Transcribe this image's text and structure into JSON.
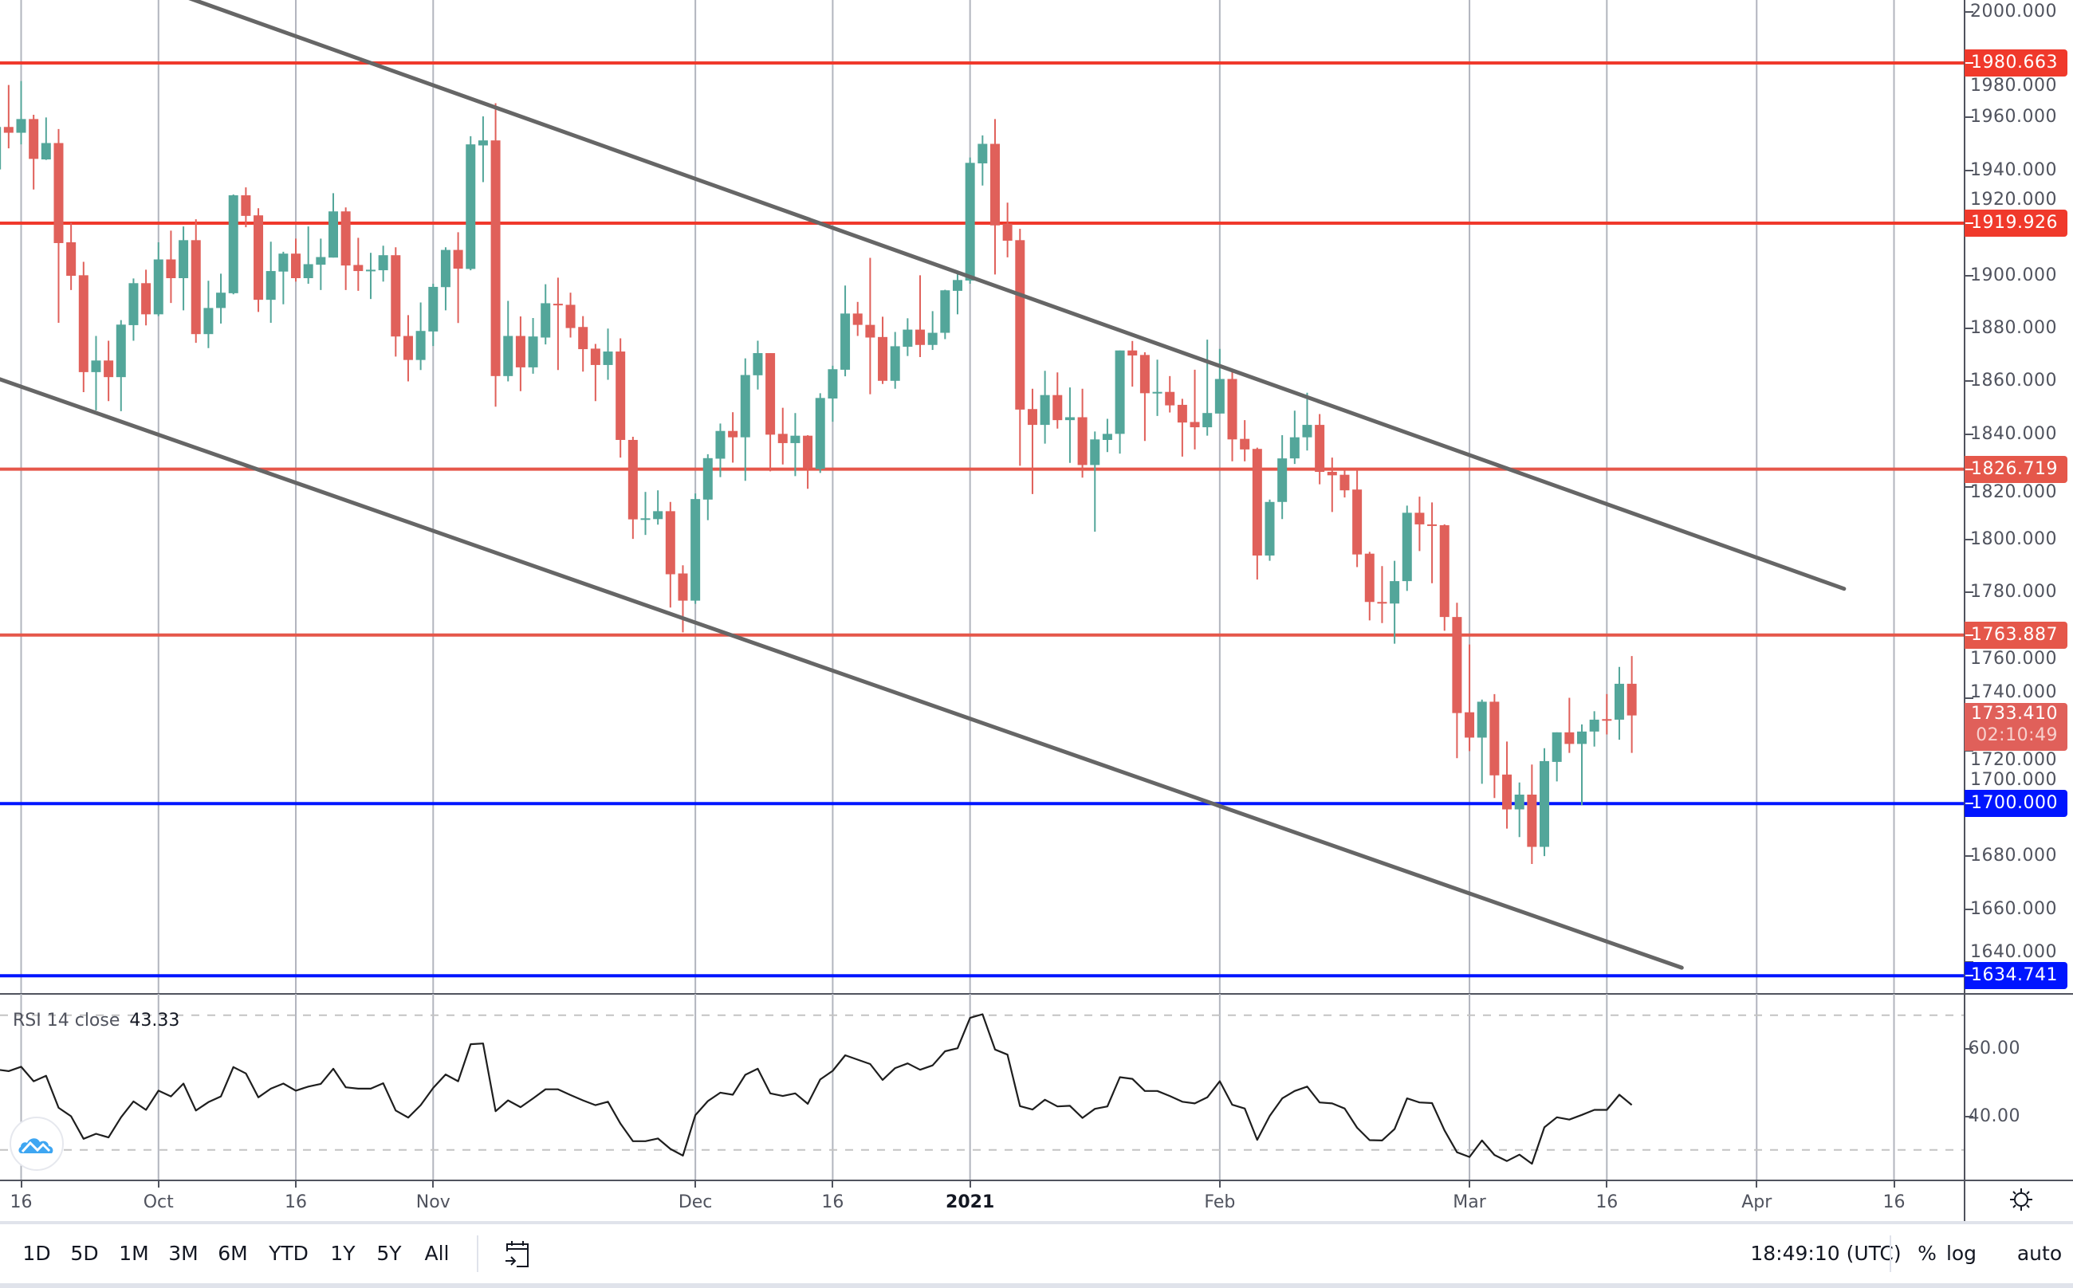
{
  "chart_data": {
    "type": "candlestick",
    "colors": {
      "up": "#53a69a",
      "down": "#e0605a",
      "trendline": "#666666",
      "rsi_line": "#1e1e1e"
    },
    "price_axis": {
      "ticks": [
        "2000.000",
        "1980.000",
        "1960.000",
        "1940.000",
        "1920.000",
        "1900.000",
        "1880.000",
        "1860.000",
        "1840.000",
        "1820.000",
        "1800.000",
        "1780.000",
        "1760.000",
        "1740.000",
        "1720.000",
        "1700.000",
        "1680.000",
        "1660.000",
        "1640.000"
      ],
      "ylim": [
        1637.5,
        2004.5
      ]
    },
    "time_axis": {
      "labels": [
        {
          "text": "16",
          "date": "2020-09-16"
        },
        {
          "text": "Oct",
          "date": "2020-10-01"
        },
        {
          "text": "16",
          "date": "2020-10-16"
        },
        {
          "text": "Nov",
          "date": "2020-11-02"
        },
        {
          "text": "Dec",
          "date": "2020-12-01"
        },
        {
          "text": "16",
          "date": "2020-12-16"
        },
        {
          "text": "2021",
          "date": "2021-01-04",
          "bold": true
        },
        {
          "text": "Feb",
          "date": "2021-02-01"
        },
        {
          "text": "Mar",
          "date": "2021-03-01"
        },
        {
          "text": "16",
          "date": "2021-03-16"
        },
        {
          "text": "Apr",
          "date": "2021-04-01"
        },
        {
          "text": "16",
          "date": "2021-04-16"
        }
      ],
      "grid": true
    },
    "horizontal_lines": [
      {
        "price": 1980.663,
        "label": "1980.663",
        "color": "#f0392b"
      },
      {
        "price": 1919.926,
        "label": "1919.926",
        "color": "#f0392b"
      },
      {
        "price": 1826.719,
        "label": "1826.719",
        "color": "#e5574a"
      },
      {
        "price": 1763.887,
        "label": "1763.887",
        "color": "#e5574a"
      },
      {
        "price": 1700.0,
        "label": "1700.000",
        "color": "#0015ff"
      },
      {
        "price": 1634.741,
        "label": "1634.741",
        "color": "#0015ff"
      }
    ],
    "trendlines": [
      {
        "from": [
          "2020-09-14",
          2031.3
        ],
        "to": [
          "2021-04-12",
          1781.4
        ]
      },
      {
        "from": [
          "2020-09-14",
          1861.3
        ],
        "to": [
          "2021-03-24",
          1637.8
        ]
      }
    ],
    "current_price": {
      "label": "1733.410",
      "price": 1733.41,
      "countdown": "02:10:49"
    },
    "ohlc_columns": [
      "date",
      "open",
      "high",
      "low",
      "close"
    ],
    "candles": [
      [
        "2020-09-14",
        1940.3,
        1966,
        1937,
        1956.4
      ],
      [
        "2020-09-15",
        1956.4,
        1972.3,
        1948.3,
        1954.2
      ],
      [
        "2020-09-16",
        1954.2,
        1973.8,
        1949.8,
        1959.4
      ],
      [
        "2020-09-17",
        1959.4,
        1961,
        1932.7,
        1944.3
      ],
      [
        "2020-09-18",
        1944.1,
        1960,
        1943.9,
        1950.3
      ],
      [
        "2020-09-21",
        1950.3,
        1955.6,
        1882.2,
        1912.4
      ],
      [
        "2020-09-22",
        1912.7,
        1920.1,
        1894.6,
        1900
      ],
      [
        "2020-09-23",
        1900.2,
        1905.3,
        1855.9,
        1863.5
      ],
      [
        "2020-09-24",
        1863.5,
        1877.2,
        1849,
        1867.9
      ],
      [
        "2020-09-25",
        1867.9,
        1875.4,
        1852.5,
        1861.6
      ],
      [
        "2020-09-28",
        1861.6,
        1883.2,
        1848.7,
        1881.5
      ],
      [
        "2020-09-29",
        1881.3,
        1899,
        1875.4,
        1897.2
      ],
      [
        "2020-09-30",
        1897.2,
        1902.3,
        1881.2,
        1885.4
      ],
      [
        "2020-10-01",
        1885.4,
        1912.7,
        1884.7,
        1906.2
      ],
      [
        "2020-10-02",
        1906.2,
        1917.1,
        1889.7,
        1899.1
      ],
      [
        "2020-10-05",
        1899.1,
        1918.7,
        1886.9,
        1913.5
      ],
      [
        "2020-10-06",
        1913.5,
        1921.4,
        1874.6,
        1877.9
      ],
      [
        "2020-10-07",
        1877.9,
        1898.1,
        1872.6,
        1887.8
      ],
      [
        "2020-10-08",
        1887.8,
        1900.8,
        1881.9,
        1893.6
      ],
      [
        "2020-10-09",
        1893.4,
        1930.8,
        1893,
        1930.5
      ],
      [
        "2020-10-12",
        1930.5,
        1933.5,
        1918.4,
        1922.7
      ],
      [
        "2020-10-13",
        1922.9,
        1925.6,
        1886.3,
        1890.9
      ],
      [
        "2020-10-14",
        1890.9,
        1912.9,
        1882.2,
        1901.8
      ],
      [
        "2020-10-15",
        1901.6,
        1909.1,
        1889.2,
        1908.4
      ],
      [
        "2020-10-16",
        1908.4,
        1914.1,
        1897.8,
        1899.1
      ],
      [
        "2020-10-19",
        1899.1,
        1918.7,
        1897,
        1904.4
      ],
      [
        "2020-10-20",
        1904.2,
        1914.1,
        1894.6,
        1907.1
      ],
      [
        "2020-10-21",
        1906.9,
        1931.3,
        1906.9,
        1924.4
      ],
      [
        "2020-10-22",
        1924.4,
        1925.9,
        1894.6,
        1903.9
      ],
      [
        "2020-10-23",
        1904.1,
        1914.4,
        1894.3,
        1901.8
      ],
      [
        "2020-10-26",
        1901.8,
        1908.7,
        1891.2,
        1902.3
      ],
      [
        "2020-10-27",
        1902.1,
        1911.4,
        1897.8,
        1907.8
      ],
      [
        "2020-10-28",
        1907.8,
        1910.8,
        1869.4,
        1877
      ],
      [
        "2020-10-29",
        1877.2,
        1885.1,
        1860,
        1868.1
      ],
      [
        "2020-10-30",
        1868.1,
        1889.9,
        1864.3,
        1879.1
      ],
      [
        "2020-11-02",
        1878.9,
        1897,
        1873.4,
        1895.8
      ],
      [
        "2020-11-03",
        1895.7,
        1910.8,
        1886.9,
        1909.8
      ],
      [
        "2020-11-04",
        1909.8,
        1916.5,
        1882.1,
        1902.7
      ],
      [
        "2020-11-05",
        1902.6,
        1952.9,
        1902.1,
        1949.8
      ],
      [
        "2020-11-06",
        1949.4,
        1960.4,
        1935.5,
        1951.3
      ],
      [
        "2020-11-09",
        1951.3,
        1965.4,
        1850.4,
        1862
      ],
      [
        "2020-11-10",
        1862,
        1890.5,
        1860,
        1877.2
      ],
      [
        "2020-11-11",
        1877.2,
        1884.6,
        1856.3,
        1865.3
      ],
      [
        "2020-11-12",
        1865.3,
        1884,
        1862.9,
        1877
      ],
      [
        "2020-11-13",
        1876.6,
        1896.8,
        1874,
        1889.6
      ],
      [
        "2020-11-16",
        1889.4,
        1899.3,
        1864.3,
        1889
      ],
      [
        "2020-11-17",
        1889,
        1893.6,
        1876.6,
        1880.2
      ],
      [
        "2020-11-18",
        1880.6,
        1884.7,
        1863.7,
        1872.2
      ],
      [
        "2020-11-19",
        1872.4,
        1874.2,
        1852.5,
        1866.2
      ],
      [
        "2020-11-20",
        1866.2,
        1880,
        1860.6,
        1871.3
      ],
      [
        "2020-11-23",
        1871.3,
        1876.3,
        1831.1,
        1837.8
      ],
      [
        "2020-11-24",
        1837.8,
        1839,
        1800.3,
        1807.7
      ],
      [
        "2020-11-25",
        1807.7,
        1818.1,
        1801.8,
        1808.1
      ],
      [
        "2020-11-26",
        1807.8,
        1818.7,
        1805.7,
        1810.8
      ],
      [
        "2020-11-27",
        1810.8,
        1814.3,
        1774.3,
        1786.9
      ],
      [
        "2020-11-30",
        1787.2,
        1790.3,
        1764.9,
        1776.9
      ],
      [
        "2020-12-01",
        1776.9,
        1817.5,
        1775.7,
        1815.4
      ],
      [
        "2020-12-02",
        1815.2,
        1832.4,
        1807.4,
        1830.9
      ],
      [
        "2020-12-03",
        1830.7,
        1844,
        1823.7,
        1841.2
      ],
      [
        "2020-12-04",
        1841.2,
        1848.3,
        1829.2,
        1838.8
      ],
      [
        "2020-12-07",
        1838.8,
        1868.7,
        1822.3,
        1862.4
      ],
      [
        "2020-12-08",
        1862.3,
        1875.4,
        1856.9,
        1870.7
      ],
      [
        "2020-12-09",
        1870.7,
        1870.7,
        1825.9,
        1839.8
      ],
      [
        "2020-12-10",
        1840.1,
        1850,
        1828.5,
        1836.6
      ],
      [
        "2020-12-11",
        1836.6,
        1848,
        1824.1,
        1839.4
      ],
      [
        "2020-12-14",
        1839.4,
        1839.6,
        1819.3,
        1827.1
      ],
      [
        "2020-12-15",
        1826.8,
        1855.5,
        1825.3,
        1853.7
      ],
      [
        "2020-12-16",
        1853.5,
        1865.9,
        1844.7,
        1864.6
      ],
      [
        "2020-12-17",
        1864.4,
        1896.3,
        1861.9,
        1885.7
      ],
      [
        "2020-12-18",
        1885.7,
        1890.1,
        1877.2,
        1881.4
      ],
      [
        "2020-12-21",
        1881.4,
        1906.8,
        1855.1,
        1876.6
      ],
      [
        "2020-12-22",
        1876.8,
        1884.5,
        1859,
        1860.2
      ],
      [
        "2020-12-23",
        1860.2,
        1878.7,
        1857.2,
        1873.3
      ],
      [
        "2020-12-24",
        1873.1,
        1883.9,
        1869.6,
        1879.6
      ],
      [
        "2020-12-28",
        1879.6,
        1900.2,
        1869.2,
        1873.8
      ],
      [
        "2020-12-29",
        1873.8,
        1886.6,
        1871.9,
        1878.4
      ],
      [
        "2020-12-30",
        1878.4,
        1894.7,
        1876,
        1894.5
      ],
      [
        "2020-12-31",
        1894.3,
        1901.2,
        1885.4,
        1898.4
      ],
      [
        "2021-01-04",
        1898.2,
        1944.8,
        1897,
        1942.8
      ],
      [
        "2021-01-05",
        1942.6,
        1953.2,
        1934.2,
        1950
      ],
      [
        "2021-01-06",
        1950,
        1959.4,
        1900.5,
        1919.1
      ],
      [
        "2021-01-07",
        1919.7,
        1927.7,
        1907,
        1913.3
      ],
      [
        "2021-01-08",
        1913.5,
        1917.8,
        1828,
        1849.3
      ],
      [
        "2021-01-11",
        1849.5,
        1857.2,
        1817.3,
        1843.5
      ],
      [
        "2021-01-12",
        1843.5,
        1864,
        1836.4,
        1854.8
      ],
      [
        "2021-01-13",
        1854.8,
        1863.4,
        1842.1,
        1845.3
      ],
      [
        "2021-01-14",
        1845.3,
        1857.7,
        1829.1,
        1846.4
      ],
      [
        "2021-01-15",
        1846.4,
        1857.2,
        1823.5,
        1828.3
      ],
      [
        "2021-01-18",
        1828.3,
        1841,
        1803,
        1838
      ],
      [
        "2021-01-19",
        1837.8,
        1845.8,
        1833.2,
        1840.1
      ],
      [
        "2021-01-20",
        1840.1,
        1871.7,
        1832.6,
        1871.7
      ],
      [
        "2021-01-21",
        1871.7,
        1875.3,
        1858,
        1869.8
      ],
      [
        "2021-01-22",
        1870,
        1871,
        1837.4,
        1855.5
      ],
      [
        "2021-01-25",
        1855.5,
        1868.2,
        1846.9,
        1856
      ],
      [
        "2021-01-26",
        1856,
        1862,
        1848.2,
        1850.9
      ],
      [
        "2021-01-27",
        1851.1,
        1853.4,
        1831.5,
        1844.4
      ],
      [
        "2021-01-28",
        1844.6,
        1864.4,
        1834.2,
        1842.6
      ],
      [
        "2021-01-29",
        1842.6,
        1875.8,
        1839.4,
        1848
      ],
      [
        "2021-02-01",
        1847.8,
        1872.3,
        1847.8,
        1860.9
      ],
      [
        "2021-02-02",
        1860.9,
        1864.2,
        1829.7,
        1838
      ],
      [
        "2021-02-03",
        1838.2,
        1845.3,
        1829.7,
        1834.2
      ],
      [
        "2021-02-04",
        1834.4,
        1834.9,
        1784.9,
        1794
      ],
      [
        "2021-02-05",
        1794,
        1815.2,
        1792,
        1814.3
      ],
      [
        "2021-02-08",
        1814.3,
        1839.6,
        1807.8,
        1830.8
      ],
      [
        "2021-02-09",
        1830.8,
        1848.9,
        1828.7,
        1838.8
      ],
      [
        "2021-02-10",
        1838.8,
        1855.7,
        1833.8,
        1843.5
      ],
      [
        "2021-02-11",
        1843.5,
        1847.6,
        1821,
        1825.7
      ],
      [
        "2021-02-12",
        1825.7,
        1831.1,
        1810.5,
        1824.4
      ],
      [
        "2021-02-15",
        1824.6,
        1826.4,
        1816,
        1818.7
      ],
      [
        "2021-02-16",
        1819,
        1826.4,
        1789.6,
        1794.4
      ],
      [
        "2021-02-17",
        1794.7,
        1795.4,
        1769.4,
        1776.4
      ],
      [
        "2021-02-18",
        1776.4,
        1790,
        1768.4,
        1775.8
      ],
      [
        "2021-02-19",
        1775.8,
        1792,
        1760.6,
        1784.3
      ],
      [
        "2021-02-22",
        1784.3,
        1812.9,
        1780.6,
        1810.2
      ],
      [
        "2021-02-23",
        1810.2,
        1816.3,
        1795.7,
        1805.8
      ],
      [
        "2021-02-24",
        1805.8,
        1814.1,
        1783.5,
        1805.2
      ],
      [
        "2021-02-25",
        1805.5,
        1805.8,
        1765.5,
        1770.7
      ],
      [
        "2021-02-26",
        1770.7,
        1776.1,
        1717.2,
        1734.3
      ],
      [
        "2021-03-01",
        1734.6,
        1760.3,
        1719.9,
        1725
      ],
      [
        "2021-03-02",
        1725,
        1739.4,
        1707.5,
        1738.6
      ],
      [
        "2021-03-03",
        1738.6,
        1741.5,
        1702.1,
        1710.7
      ],
      [
        "2021-03-04",
        1711,
        1723.5,
        1690.5,
        1697.8
      ],
      [
        "2021-03-05",
        1697.8,
        1708,
        1687.3,
        1703.4
      ],
      [
        "2021-03-08",
        1703.4,
        1714.8,
        1677.1,
        1683.6
      ],
      [
        "2021-03-09",
        1683.6,
        1721,
        1680.1,
        1716.1
      ],
      [
        "2021-03-10",
        1715.8,
        1727,
        1708.4,
        1727
      ],
      [
        "2021-03-11",
        1727,
        1740.1,
        1719.2,
        1722.6
      ],
      [
        "2021-03-12",
        1722.6,
        1730,
        1699.4,
        1727.3
      ],
      [
        "2021-03-15",
        1727.3,
        1735,
        1721.6,
        1731.8
      ],
      [
        "2021-03-16",
        1732,
        1741.5,
        1726.2,
        1731.5
      ],
      [
        "2021-03-17",
        1731.8,
        1751.8,
        1724.2,
        1745.4
      ],
      [
        "2021-03-18",
        1745.4,
        1755.9,
        1719.2,
        1733.4
      ]
    ],
    "rsi": {
      "label": "RSI 14 close",
      "value": "43.33",
      "axis_ticks": [
        "60.00",
        "40.00"
      ],
      "bands": [
        70,
        30
      ],
      "ylim": [
        23.5,
        77.5
      ],
      "values": [
        53.9,
        53.4,
        54.7,
        50.4,
        52,
        42.5,
        40,
        33.3,
        34.8,
        33.7,
        39.7,
        44.4,
        41.9,
        47.6,
        45.9,
        49.7,
        41.7,
        44.2,
        45.9,
        54.6,
        52.7,
        45.6,
        48.2,
        49.7,
        47.6,
        48.8,
        49.6,
        54.1,
        48.6,
        48.2,
        48.2,
        49.8,
        41.7,
        39.6,
        43.3,
        48.4,
        52.4,
        50.4,
        61.4,
        61.6,
        41.5,
        44.7,
        42.7,
        45.3,
        48,
        48,
        46.3,
        44.7,
        43.3,
        44.3,
        37.8,
        32.6,
        32.6,
        33.4,
        30.3,
        28.3,
        40.3,
        44.5,
        47,
        46.4,
        52.3,
        54.1,
        46.8,
        46,
        46.8,
        43.7,
        50.9,
        53.5,
        58.1,
        56.8,
        55.5,
        50.8,
        54.3,
        55.7,
        53.8,
        55.1,
        59.3,
        60.2,
        69.2,
        70.3,
        59.8,
        58.3,
        43,
        42,
        44.9,
        42.9,
        43.1,
        39.5,
        42.2,
        42.9,
        51.6,
        51.1,
        47.5,
        47.5,
        46,
        44.3,
        43.8,
        45.6,
        50.4,
        43.4,
        42.3,
        33,
        40.1,
        45.3,
        47.5,
        48.8,
        44.1,
        43.8,
        42.3,
        36.6,
        32.9,
        32.8,
        36.2,
        45.3,
        44.1,
        43.9,
        35.8,
        29.3,
        27.9,
        32.8,
        28.5,
        26.7,
        28.6,
        25.9,
        36.7,
        39.7,
        39,
        40.4,
        41.9,
        41.9,
        46.4,
        43.33
      ]
    }
  },
  "toolbar": {
    "ranges": [
      "1D",
      "5D",
      "1M",
      "3M",
      "6M",
      "YTD",
      "1Y",
      "5Y",
      "All"
    ],
    "clock": "18:49:10 (UTC)",
    "percent": "%",
    "log": "log",
    "auto": "auto"
  },
  "icons": {
    "logo": "tradingview-cloud-icon",
    "goto_date": "calendar-goto-icon",
    "settings": "sun-settings-icon"
  }
}
